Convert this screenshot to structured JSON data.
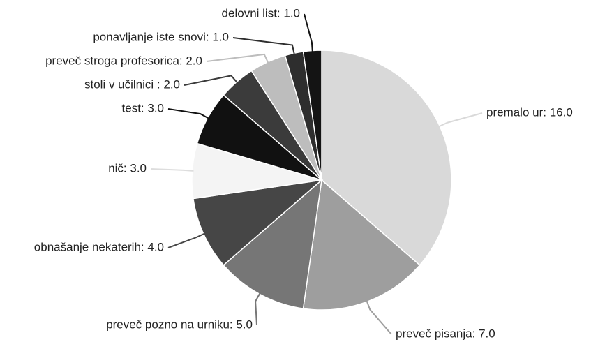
{
  "chart_data": {
    "type": "pie",
    "values": [
      16,
      7,
      5,
      4,
      3,
      3,
      2,
      2,
      1,
      1
    ],
    "value_labels": [
      "premalo ur: 16.0",
      "preveč pisanja: 7.0",
      "preveč pozno na urniku: 5.0",
      "obnašanje nekaterih: 4.0",
      "nič: 3.0",
      "test: 3.0",
      "stoli v učilnici : 2.0",
      "preveč stroga profesorica: 2.0",
      "ponavljanje iste snovi: 1.0",
      "delovni list: 1.0"
    ],
    "colors": [
      "#d9d9d9",
      "#9e9e9e",
      "#767676",
      "#464646",
      "#f4f4f4",
      "#111111",
      "#3b3b3b",
      "#bdbdbd",
      "#2e2e2e",
      "#141414"
    ]
  }
}
